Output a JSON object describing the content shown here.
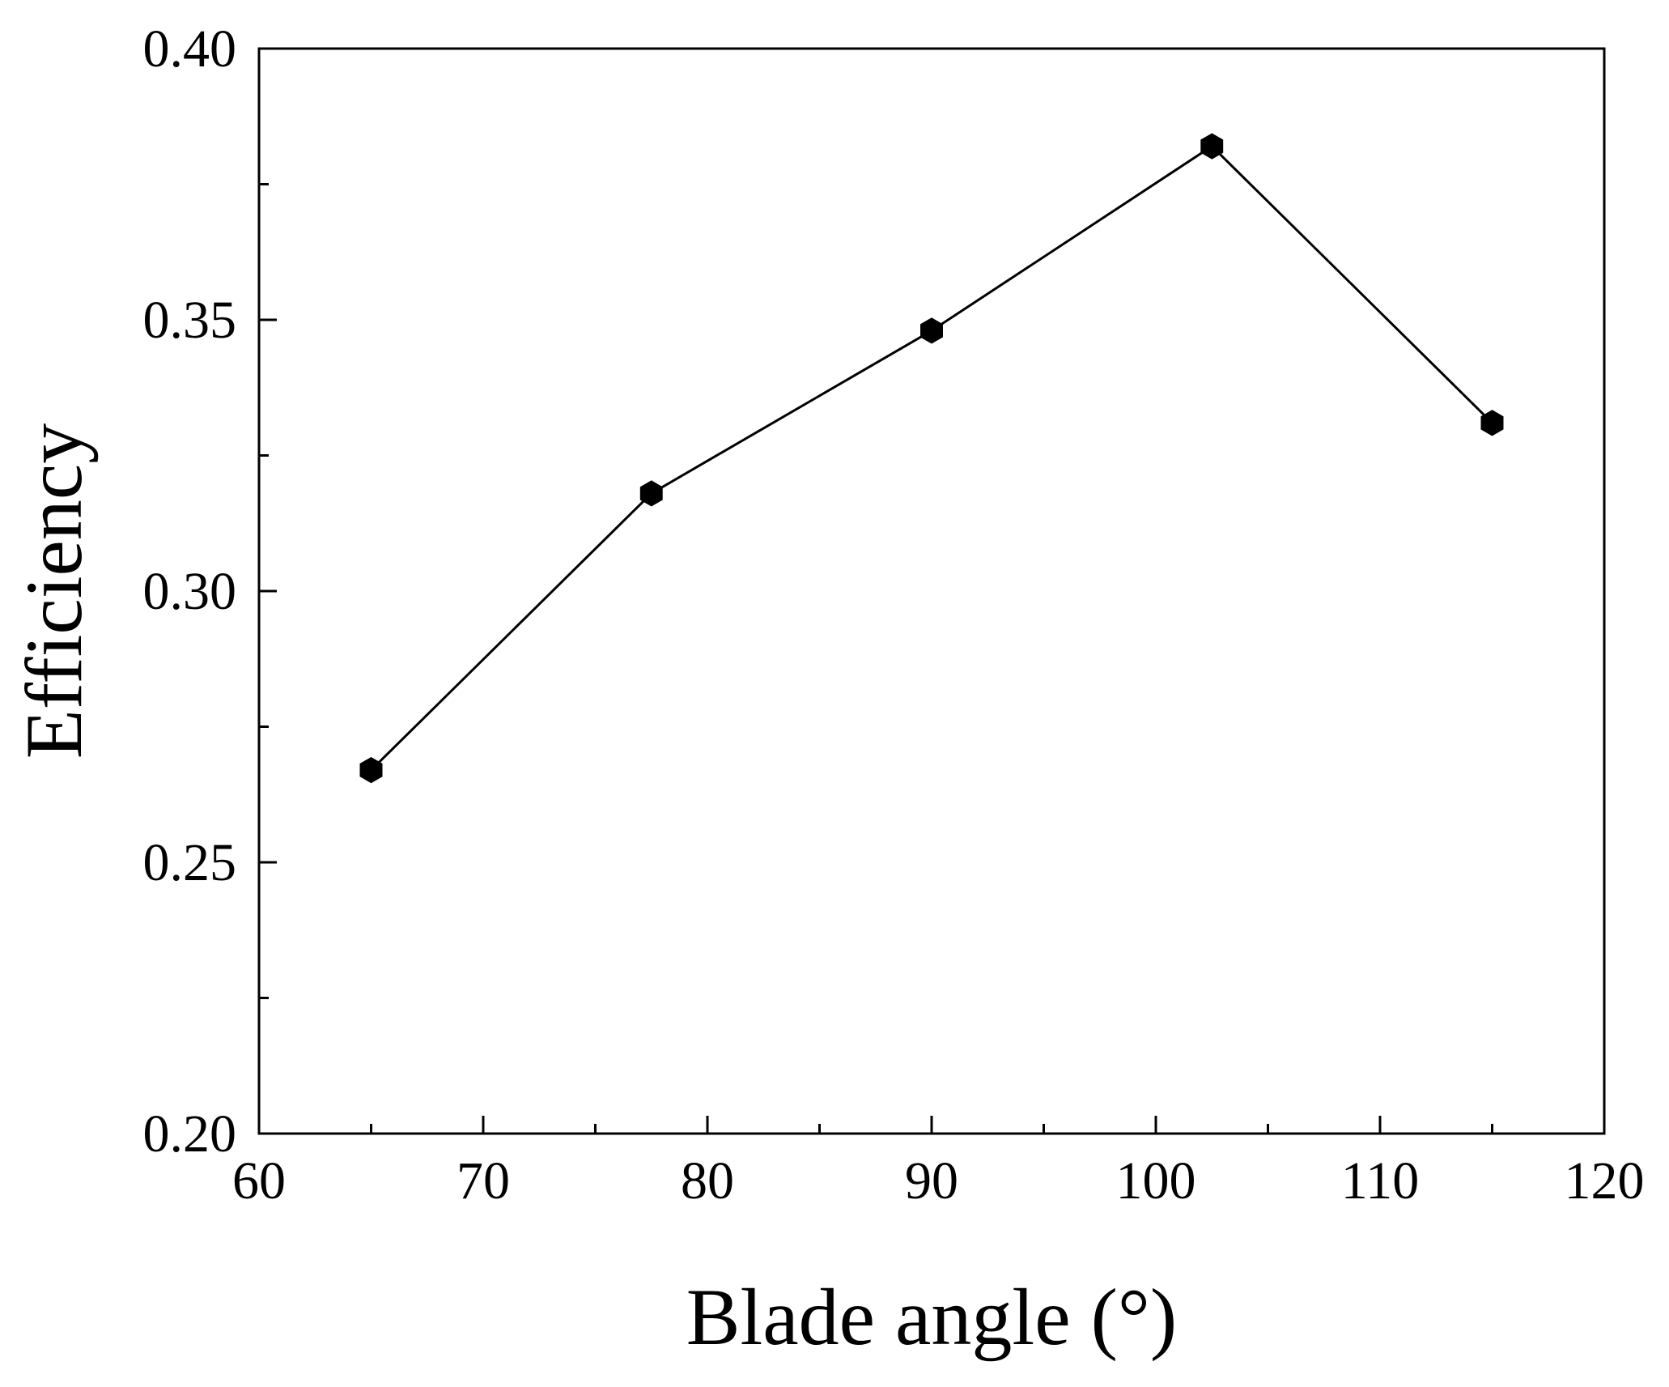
{
  "chart_data": {
    "type": "line",
    "title": "",
    "xlabel": "Blade angle (°)",
    "ylabel": "Efficiency",
    "xlim": [
      60,
      120
    ],
    "ylim": [
      0.2,
      0.4
    ],
    "x_ticks": [
      60,
      70,
      80,
      90,
      100,
      110,
      120
    ],
    "x_tick_labels": [
      "60",
      "70",
      "80",
      "90",
      "100",
      "110",
      "120"
    ],
    "y_ticks": [
      0.2,
      0.25,
      0.3,
      0.35,
      0.4
    ],
    "y_tick_labels": [
      "0.20",
      "0.25",
      "0.30",
      "0.35",
      "0.40"
    ],
    "x_minor_ticks": [
      65,
      75,
      85,
      95,
      105,
      115
    ],
    "y_minor_ticks": [
      0.225,
      0.275,
      0.325,
      0.375
    ],
    "grid": false,
    "legend": "none",
    "series": [
      {
        "x": [
          65,
          77.5,
          90,
          102.5,
          115
        ],
        "y": [
          0.267,
          0.318,
          0.348,
          0.382,
          0.331
        ],
        "marker": "hexagon",
        "color": "#000000"
      }
    ]
  }
}
